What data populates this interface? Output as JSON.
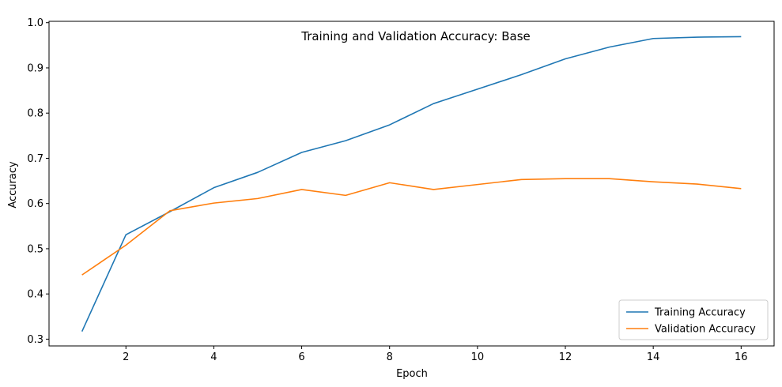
{
  "chart_data": {
    "type": "line",
    "title": "Training and Validation Accuracy: Base",
    "xlabel": "Epoch",
    "ylabel": "Accuracy",
    "xlim": [
      0.25,
      16.75
    ],
    "ylim": [
      0.285,
      1.003
    ],
    "xticks": [
      2,
      4,
      6,
      8,
      10,
      12,
      14,
      16
    ],
    "yticks": [
      0.3,
      0.4,
      0.5,
      0.6,
      0.7,
      0.8,
      0.9,
      1.0
    ],
    "ytick_labels": [
      "0.3",
      "0.4",
      "0.5",
      "0.6",
      "0.7",
      "0.8",
      "0.9",
      "1.0"
    ],
    "grid": false,
    "legend": "lower-right",
    "x": [
      1,
      2,
      3,
      4,
      5,
      6,
      7,
      8,
      9,
      10,
      11,
      12,
      13,
      14,
      15,
      16
    ],
    "series": [
      {
        "name": "Training Accuracy",
        "color": "#1f77b4",
        "values": [
          0.317,
          0.531,
          0.582,
          0.635,
          0.669,
          0.713,
          0.739,
          0.774,
          0.821,
          0.853,
          0.885,
          0.92,
          0.946,
          0.965,
          0.968,
          0.969
        ]
      },
      {
        "name": "Validation Accuracy",
        "color": "#ff7f0e",
        "values": [
          0.442,
          0.508,
          0.584,
          0.601,
          0.611,
          0.631,
          0.618,
          0.646,
          0.631,
          0.642,
          0.653,
          0.655,
          0.655,
          0.648,
          0.643,
          0.633
        ]
      }
    ]
  }
}
